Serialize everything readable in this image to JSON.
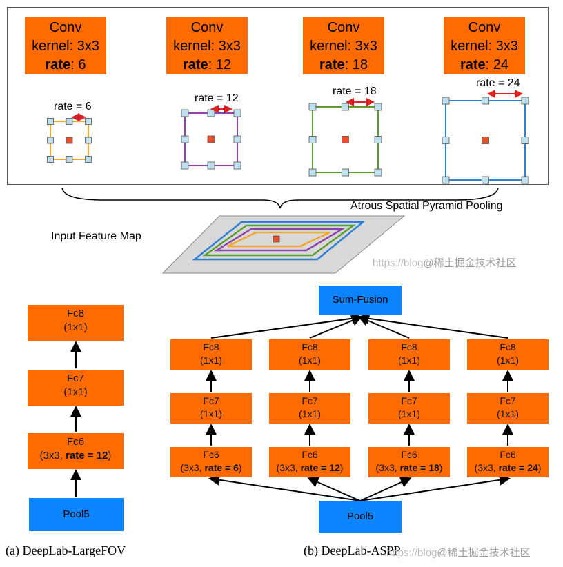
{
  "aspp_title": "Atrous Spatial Pyramid Pooling",
  "input_label": "Input Feature Map",
  "convs": [
    {
      "line1": "Conv",
      "line2": "kernel: 3x3",
      "rate_word": "rate",
      "rate_value": ": 6",
      "label": "rate = 6",
      "color": "#f5a623"
    },
    {
      "line1": "Conv",
      "line2": "kernel: 3x3",
      "rate_word": "rate",
      "rate_value": ": 12",
      "label": "rate = 12",
      "color": "#8e44ad"
    },
    {
      "line1": "Conv",
      "line2": "kernel: 3x3",
      "rate_word": "rate",
      "rate_value": ": 18",
      "label": "rate = 18",
      "color": "#5a9e32"
    },
    {
      "line1": "Conv",
      "line2": "kernel: 3x3",
      "rate_word": "rate",
      "rate_value": ": 24",
      "label": "rate = 24",
      "color": "#2f7fd6"
    }
  ],
  "largefov": {
    "fc8": {
      "name": "Fc8",
      "sub": "(1x1)"
    },
    "fc7": {
      "name": "Fc7",
      "sub": "(1x1)"
    },
    "fc6": {
      "name": "Fc6",
      "sub_pre": "(3x3, ",
      "sub_bold": "rate = 12",
      "sub_post": ")"
    },
    "pool": "Pool5",
    "caption": "(a) DeepLab-LargeFOV"
  },
  "aspp": {
    "sum": "Sum-Fusion",
    "pool": "Pool5",
    "caption": "(b) DeepLab-ASPP",
    "branches": [
      {
        "fc8": "Fc8",
        "fc8_sub": "(1x1)",
        "fc7": "Fc7",
        "fc7_sub": "(1x1)",
        "fc6": "Fc6",
        "fc6_pre": "(3x3, ",
        "fc6_bold": "rate = 6",
        "fc6_post": ")"
      },
      {
        "fc8": "Fc8",
        "fc8_sub": "(1x1)",
        "fc7": "Fc7",
        "fc7_sub": "(1x1)",
        "fc6": "Fc6",
        "fc6_pre": "(3x3, ",
        "fc6_bold": "rate = 12",
        "fc6_post": ")"
      },
      {
        "fc8": "Fc8",
        "fc8_sub": "(1x1)",
        "fc7": "Fc7",
        "fc7_sub": "(1x1)",
        "fc6": "Fc6",
        "fc6_pre": "(3x3, ",
        "fc6_bold": "rate = 18",
        "fc6_post": ")"
      },
      {
        "fc8": "Fc8",
        "fc8_sub": "(1x1)",
        "fc7": "Fc7",
        "fc7_sub": "(1x1)",
        "fc6": "Fc6",
        "fc6_pre": "(3x3, ",
        "fc6_bold": "rate = 24",
        "fc6_post": ")"
      }
    ]
  },
  "watermark_1": "https://blog",
  "watermark_1b": "@稀土掘金技术社区",
  "watermark_2": "https://blog",
  "watermark_2b": "@稀土掘金技术社区",
  "colors": {
    "orange": "#ff6b00",
    "blue": "#0a84ff",
    "arrow_red": "#e02020",
    "center": "#e8502a",
    "dot": "#bfe0ef"
  }
}
